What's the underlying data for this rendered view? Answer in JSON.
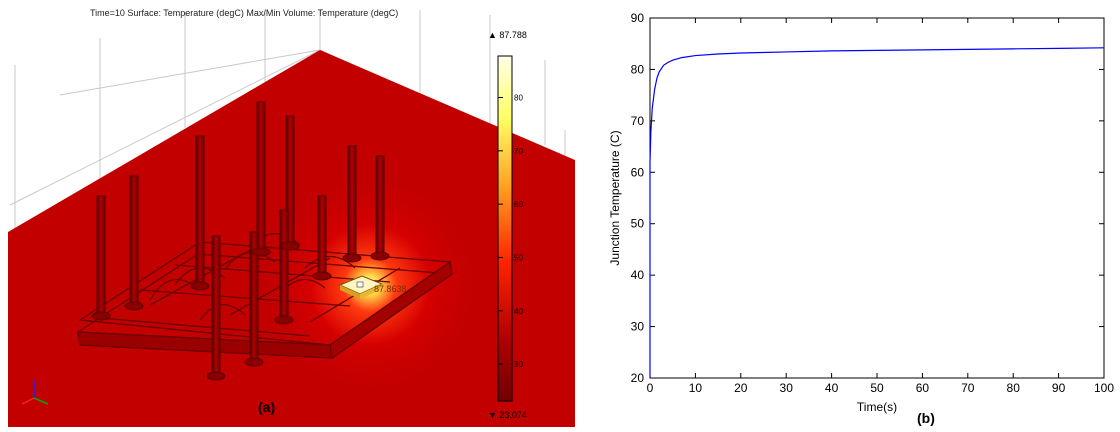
{
  "panel_a": {
    "header": "Time=10   Surface: Temperature (degC)   Max/Min Volume: Temperature (degC)",
    "label": "(a)",
    "colorbar": {
      "max_label": "▲ 87.788",
      "min_label": "▼ 23.074",
      "ticks": [
        "80",
        "70",
        "60",
        "50",
        "40",
        "30"
      ],
      "tick_values": [
        80,
        70,
        60,
        50,
        40,
        30
      ],
      "range": [
        23.074,
        87.788
      ]
    },
    "hotspot_label": "87.8638",
    "colors": {
      "background_plate": "#cc0000",
      "hot": "#ffff80",
      "frame": "#8b0000"
    }
  },
  "panel_b": {
    "label": "(b)"
  },
  "chart_data": {
    "type": "line",
    "xlabel": "Time(s)",
    "ylabel": "Junction Temperature (C)",
    "xlim": [
      0,
      100
    ],
    "ylim": [
      20,
      90
    ],
    "xticks": [
      0,
      10,
      20,
      30,
      40,
      50,
      60,
      70,
      80,
      90,
      100
    ],
    "yticks": [
      20,
      30,
      40,
      50,
      60,
      70,
      80,
      90
    ],
    "series": [
      {
        "color": "#0000ff",
        "x": [
          0,
          0.2,
          0.5,
          1,
          1.5,
          2,
          3,
          4,
          5,
          7,
          10,
          15,
          20,
          30,
          40,
          50,
          60,
          70,
          80,
          90,
          100
        ],
        "y": [
          62,
          68,
          72.5,
          76,
          78.2,
          79.5,
          80.8,
          81.4,
          81.8,
          82.3,
          82.7,
          83.0,
          83.2,
          83.4,
          83.6,
          83.7,
          83.8,
          83.9,
          84.0,
          84.1,
          84.2
        ]
      }
    ]
  }
}
